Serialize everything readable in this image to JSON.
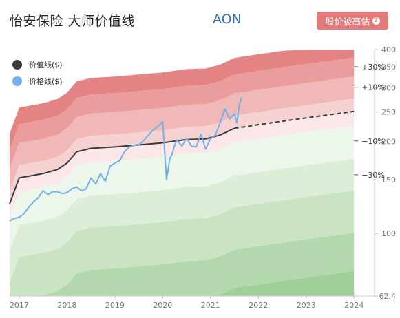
{
  "header": {
    "title": "怡安保险 大师价值线",
    "ticker": "AON",
    "badge_label": "股价被高估",
    "badge_icon": "question-icon"
  },
  "legend": [
    {
      "label": "价值线($)",
      "color": "#3a3a3a"
    },
    {
      "label": "价格线($)",
      "color": "#72b0ea"
    }
  ],
  "colors": {
    "value_line": "#3a3a3a",
    "price_line": "#72b0ea",
    "red_bands": [
      "#e48383",
      "#eb9d9d",
      "#f1b8b8",
      "#f7d2d2",
      "#fbe7e7"
    ],
    "green_bands": [
      "#edf6eb",
      "#dcedd8",
      "#c9e3c3",
      "#b4d8ad",
      "#a1cf99"
    ]
  },
  "chart_data": {
    "type": "line",
    "x_ticks": [
      "2017",
      "2018",
      "2019",
      "2020",
      "2021",
      "2022",
      "2023",
      "2024"
    ],
    "y_ticks": [
      "400",
      "350",
      "300",
      "250",
      "200",
      "150",
      "100",
      "62.4"
    ],
    "ylim": [
      62.4,
      400
    ],
    "xlim": [
      2016.8,
      2024.4
    ],
    "band_labels": [
      "+30%",
      "+10%",
      "−10%",
      "−30%"
    ],
    "band_multipliers": [
      1.7,
      1.5,
      1.3,
      1.1,
      1.0,
      0.9,
      0.7,
      0.55,
      0.4,
      0.3
    ],
    "value_line": {
      "name": "价值线($)",
      "x": [
        2016.8,
        2017.0,
        2017.5,
        2017.8,
        2018.0,
        2018.2,
        2018.5,
        2019.0,
        2019.5,
        2020.0,
        2020.5,
        2020.9,
        2021.2,
        2021.5,
        2022.0,
        2022.5,
        2023.0,
        2023.5,
        2024.0,
        2024.4
      ],
      "y": [
        125,
        152,
        157,
        162,
        170,
        185,
        190,
        192,
        195,
        198,
        203,
        204,
        210,
        221,
        227,
        233,
        239,
        245,
        251,
        256
      ],
      "projected_from": 2021.5
    },
    "price_line": {
      "name": "价格线($)",
      "x": [
        2016.8,
        2016.9,
        2017.0,
        2017.1,
        2017.2,
        2017.3,
        2017.4,
        2017.5,
        2017.6,
        2017.7,
        2017.8,
        2017.9,
        2018.0,
        2018.1,
        2018.2,
        2018.3,
        2018.4,
        2018.5,
        2018.6,
        2018.7,
        2018.8,
        2018.9,
        2019.0,
        2019.1,
        2019.2,
        2019.3,
        2019.4,
        2019.5,
        2019.6,
        2019.7,
        2019.8,
        2019.9,
        2020.0,
        2020.08,
        2020.15,
        2020.2,
        2020.25,
        2020.3,
        2020.4,
        2020.5,
        2020.6,
        2020.7,
        2020.8,
        2020.9,
        2021.0,
        2021.1,
        2021.2,
        2021.3,
        2021.4,
        2021.5,
        2021.55,
        2021.6,
        2021.65
      ],
      "y": [
        110,
        112,
        113,
        116,
        122,
        127,
        131,
        138,
        134,
        137,
        137,
        135,
        136,
        140,
        142,
        138,
        140,
        152,
        145,
        157,
        148,
        166,
        170,
        173,
        185,
        192,
        194,
        195,
        201,
        210,
        218,
        224,
        232,
        150,
        176,
        182,
        195,
        202,
        193,
        205,
        193,
        192,
        211,
        189,
        204,
        210,
        230,
        256,
        237,
        246,
        230,
        262,
        279
      ]
    }
  }
}
